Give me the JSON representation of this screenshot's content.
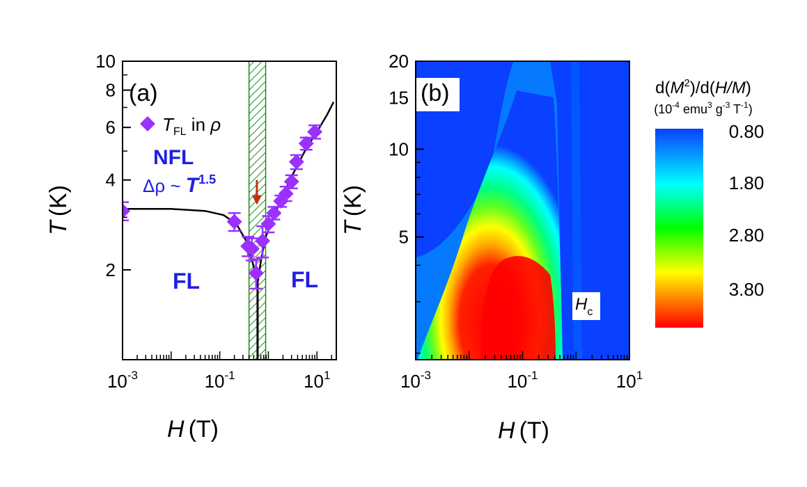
{
  "chart_data": [
    {
      "panel": "(a)",
      "type": "scatter",
      "xlabel_var": "H",
      "xlabel_unit": "(T)",
      "ylabel_var": "T",
      "ylabel_unit": "(K)",
      "xscale": "log",
      "yscale": "log",
      "xlim": [
        0.001,
        25
      ],
      "ylim": [
        1.0,
        10
      ],
      "xticks": [
        {
          "v": 0.001,
          "b": "10",
          "e": "-3"
        },
        {
          "v": 0.1,
          "b": "10",
          "e": "-1"
        },
        {
          "v": 10,
          "b": "10",
          "e": "1"
        }
      ],
      "yticks": [
        {
          "v": 2,
          "t": "2"
        },
        {
          "v": 4,
          "t": "4"
        },
        {
          "v": 6,
          "t": "6"
        },
        {
          "v": 8,
          "t": "8"
        },
        {
          "v": 10,
          "t": "10"
        }
      ],
      "legend": {
        "symbol": "diamond",
        "var": "T",
        "sub": "FL",
        "rest": " in ",
        "rho": "ρ",
        "position": "top-left"
      },
      "series": [
        {
          "color": "#9b30ff",
          "points": [
            {
              "x": 0.001,
              "y": 3.15,
              "err": 0.22
            },
            {
              "x": 0.2,
              "y": 2.9,
              "err": 0.2
            },
            {
              "x": 0.38,
              "y": 2.4,
              "err": 0.18
            },
            {
              "x": 0.46,
              "y": 2.35,
              "err": 0.2
            },
            {
              "x": 0.56,
              "y": 1.95,
              "err": 0.22
            },
            {
              "x": 0.76,
              "y": 2.5,
              "err": 0.3
            },
            {
              "x": 1.0,
              "y": 2.85,
              "err": 0.18
            },
            {
              "x": 1.3,
              "y": 3.1,
              "err": 0.15
            },
            {
              "x": 1.8,
              "y": 3.4,
              "err": 0.15
            },
            {
              "x": 2.3,
              "y": 3.6,
              "err": 0.2
            },
            {
              "x": 3.0,
              "y": 3.95,
              "err": 0.2
            },
            {
              "x": 3.8,
              "y": 4.6,
              "err": 0.25
            },
            {
              "x": 6.0,
              "y": 5.3,
              "err": 0.25
            },
            {
              "x": 9.0,
              "y": 5.8,
              "err": 0.3
            }
          ]
        }
      ],
      "fit_line": [
        [
          0.001,
          3.2
        ],
        [
          0.01,
          3.2
        ],
        [
          0.05,
          3.15
        ],
        [
          0.12,
          3.05
        ],
        [
          0.22,
          2.85
        ],
        [
          0.35,
          2.5
        ],
        [
          0.48,
          2.1
        ],
        [
          0.6,
          1.8
        ],
        [
          0.72,
          2.2
        ],
        [
          0.9,
          2.6
        ],
        [
          1.5,
          3.2
        ],
        [
          3,
          4.1
        ],
        [
          6,
          5.1
        ],
        [
          10,
          5.8
        ],
        [
          16,
          6.6
        ],
        [
          22,
          7.3
        ]
      ],
      "qcp_line": {
        "x": 0.6,
        "y_from": 1.0,
        "y_to": 1.8
      },
      "hatched_band": {
        "x_from": 0.4,
        "x_to": 0.88
      },
      "arrow": {
        "x": 0.58,
        "y_from": 4.0,
        "y_to": 3.3,
        "color": "#c03010"
      },
      "annotations": {
        "panel_label": "(a)",
        "nfl": "NFL",
        "law_delta_rho": "Δρ ~ ",
        "law_T": "T",
        "law_exp": "1.5",
        "fl_left": "FL",
        "fl_right": "FL"
      }
    },
    {
      "panel": "(b)",
      "type": "heatmap",
      "xlabel_var": "H",
      "xlabel_unit": "(T)",
      "ylabel_var": "T",
      "ylabel_unit": "(K)",
      "xscale": "log",
      "yscale": "log",
      "xlim": [
        0.001,
        10
      ],
      "ylim": [
        1.9,
        20
      ],
      "xticks": [
        {
          "v": 0.001,
          "b": "10",
          "e": "-3"
        },
        {
          "v": 0.1,
          "b": "10",
          "e": "-1"
        },
        {
          "v": 10,
          "b": "10",
          "e": "1"
        }
      ],
      "yticks": [
        {
          "v": 5,
          "t": "5"
        },
        {
          "v": 10,
          "t": "10"
        },
        {
          "v": 15,
          "t": "15"
        },
        {
          "v": 20,
          "t": "20"
        }
      ],
      "colorbar": {
        "title_pre": "d(",
        "title_M": "M",
        "title_sup": "2",
        "title_mid": ")/d(",
        "title_HM": "H/M",
        "title_end": ")",
        "units_pre": "(10",
        "units_exp1": "-4",
        "units_mid": " emu",
        "units_exp2": "3",
        "units_g": " g",
        "units_exp3": "-3",
        "units_T": " T",
        "units_exp4": "-1",
        "units_end": ")",
        "ticks": [
          "0.80",
          "1.80",
          "2.80",
          "3.80"
        ],
        "colors": [
          "#0a40ff",
          "#00ffff",
          "#00ff00",
          "#ffff00",
          "#ff0000"
        ]
      },
      "contours_note": "filled contour map, low values blue, high values red",
      "annotations": {
        "panel_label": "(b)",
        "hc_var": "H",
        "hc_sub": "c"
      }
    }
  ]
}
